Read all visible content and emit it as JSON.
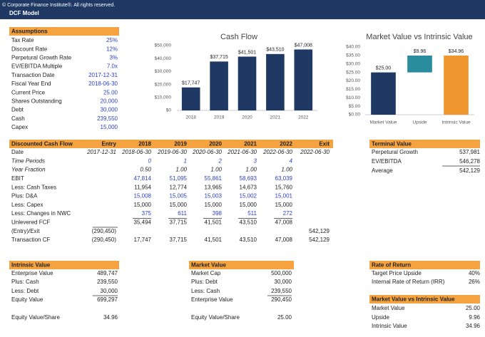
{
  "header": {
    "copyright": "© Corporate Finance Institute®. All rights reserved.",
    "title": "DCF Model"
  },
  "assumptions": {
    "title": "Assumptions",
    "rows": [
      [
        "Tax Rate",
        "25%"
      ],
      [
        "Discount Rate",
        "12%"
      ],
      [
        "Perpetural Growth Rate",
        "3%"
      ],
      [
        "EV/EBITDA Multiple",
        "7.0x"
      ],
      [
        "Transaction Date",
        "2017-12-31"
      ],
      [
        "Fiscal Year End",
        "2018-06-30"
      ],
      [
        "Current Price",
        "25.00"
      ],
      [
        "Shares Outstanding",
        "20,000"
      ],
      [
        "Debt",
        "30,000"
      ],
      [
        "Cash",
        "239,550"
      ],
      [
        "Capex",
        "15,000"
      ]
    ]
  },
  "chart_data": [
    {
      "type": "bar",
      "title": "Cash Flow",
      "categories": [
        "2018",
        "2019",
        "2020",
        "2021",
        "2022"
      ],
      "values": [
        17747,
        37715,
        41501,
        43510,
        47008
      ],
      "value_labels": [
        "$17,747",
        "$37,715",
        "$41,501",
        "$43,510",
        "$47,008"
      ],
      "color": "#1f3864",
      "ylim": [
        0,
        50000
      ],
      "yticks": [
        {
          "value": 0,
          "label": "$0"
        },
        {
          "value": 10000,
          "label": "$10,000"
        },
        {
          "value": 20000,
          "label": "$20,000"
        },
        {
          "value": 30000,
          "label": "$30,000"
        },
        {
          "value": 40000,
          "label": "$40,000"
        },
        {
          "value": 50000,
          "label": "$50,000"
        }
      ],
      "grid": false
    },
    {
      "type": "waterfall",
      "title": "Market Value vs Intrinsic Value",
      "categories": [
        "Market Value",
        "Upside",
        "Intrinsic Value"
      ],
      "values": [
        25.0,
        9.96,
        34.96
      ],
      "value_labels": [
        "$25.00",
        "$9.96",
        "$34.96"
      ],
      "colors": [
        "#1f3864",
        "#2a8c9c",
        "#f0962e"
      ],
      "ylim": [
        0,
        40
      ],
      "yticks": [
        {
          "value": 0,
          "label": "$0.00"
        },
        {
          "value": 5,
          "label": "$5.00"
        },
        {
          "value": 10,
          "label": "$10.00"
        },
        {
          "value": 15,
          "label": "$15.00"
        },
        {
          "value": 20,
          "label": "$20.00"
        },
        {
          "value": 25,
          "label": "$25.00"
        },
        {
          "value": 30,
          "label": "$30.00"
        },
        {
          "value": 35,
          "label": "$35.00"
        },
        {
          "value": 40,
          "label": "$40.00"
        }
      ],
      "grid": false
    }
  ],
  "dcf": {
    "header": [
      "Discounted Cash Flow",
      "Entry",
      "2018",
      "2019",
      "2020",
      "2021",
      "2022",
      "Exit"
    ],
    "rows": [
      [
        "Date",
        "2017-12-31",
        "2018-06-30",
        "2019-06-30",
        "2020-06-30",
        "2021-06-30",
        "2022-06-30",
        "2022-06-30"
      ],
      [
        "Time Periods",
        null,
        "0",
        "1",
        "2",
        "3",
        "4",
        null
      ],
      [
        "Year Fraction",
        null,
        "0.50",
        "1.00",
        "1.00",
        "1.00",
        "1.00",
        null
      ],
      [
        "EBIT",
        null,
        "47,814",
        "51,095",
        "55,861",
        "58,693",
        "63,039",
        null
      ],
      [
        "Less: Cash Taxes",
        null,
        "11,954",
        "12,774",
        "13,965",
        "14,673",
        "15,760",
        null
      ],
      [
        "Plus: D&A",
        null,
        "15,008",
        "15,005",
        "15,003",
        "15,002",
        "15,001",
        null
      ],
      [
        "Less: Capex",
        null,
        "15,000",
        "15,000",
        "15,000",
        "15,000",
        "15,000",
        null
      ],
      [
        "Less: Changes in NWC",
        null,
        "375",
        "611",
        "398",
        "511",
        "272",
        null
      ],
      [
        "Unlevered FCF",
        null,
        "35,494",
        "37,715",
        "41,501",
        "43,510",
        "47,008",
        null
      ],
      [
        "(Entry)/Exit",
        "(290,450)",
        null,
        null,
        null,
        null,
        null,
        "542,129"
      ],
      [
        "Transaction CF",
        "(290,450)",
        "17,747",
        "37,715",
        "41,501",
        "43,510",
        "47,008",
        "542,129"
      ]
    ]
  },
  "terminal_value": {
    "title": "Terminal Value",
    "rows": [
      [
        "Perpetural Growth",
        "537,981"
      ],
      [
        "EV/EBITDA",
        "546,278"
      ],
      [
        "Average",
        "542,129"
      ]
    ]
  },
  "intrinsic_value": {
    "title": "Intrinsic Value",
    "rows": [
      [
        "Enterprise Value",
        "489,747"
      ],
      [
        "Plus: Cash",
        "239,550"
      ],
      [
        "Less: Debt",
        "30,000"
      ],
      [
        "Equity Value",
        "699,297"
      ],
      [
        "Equity Value/Share",
        "34.96"
      ]
    ]
  },
  "market_value": {
    "title": "Market Value",
    "rows": [
      [
        "Market Cap",
        "500,000"
      ],
      [
        "Plus: Debt",
        "30,000"
      ],
      [
        "Less: Cash",
        "239,550"
      ],
      [
        "Enterprise Value",
        "290,450"
      ],
      [
        "Equity Value/Share",
        "25.00"
      ]
    ]
  },
  "rate_of_return": {
    "title": "Rate of Return",
    "rows": [
      [
        "Target Price Upside",
        "40%"
      ],
      [
        "Internal Rate of Return (IRR)",
        "26%"
      ]
    ]
  },
  "market_vs_intrinsic": {
    "title": "Market Value vs Intrinsic Value",
    "rows": [
      [
        "Market Value",
        "25.00"
      ],
      [
        "Upside",
        "9.96"
      ],
      [
        "Intrinsic Value",
        "34.96"
      ]
    ]
  }
}
